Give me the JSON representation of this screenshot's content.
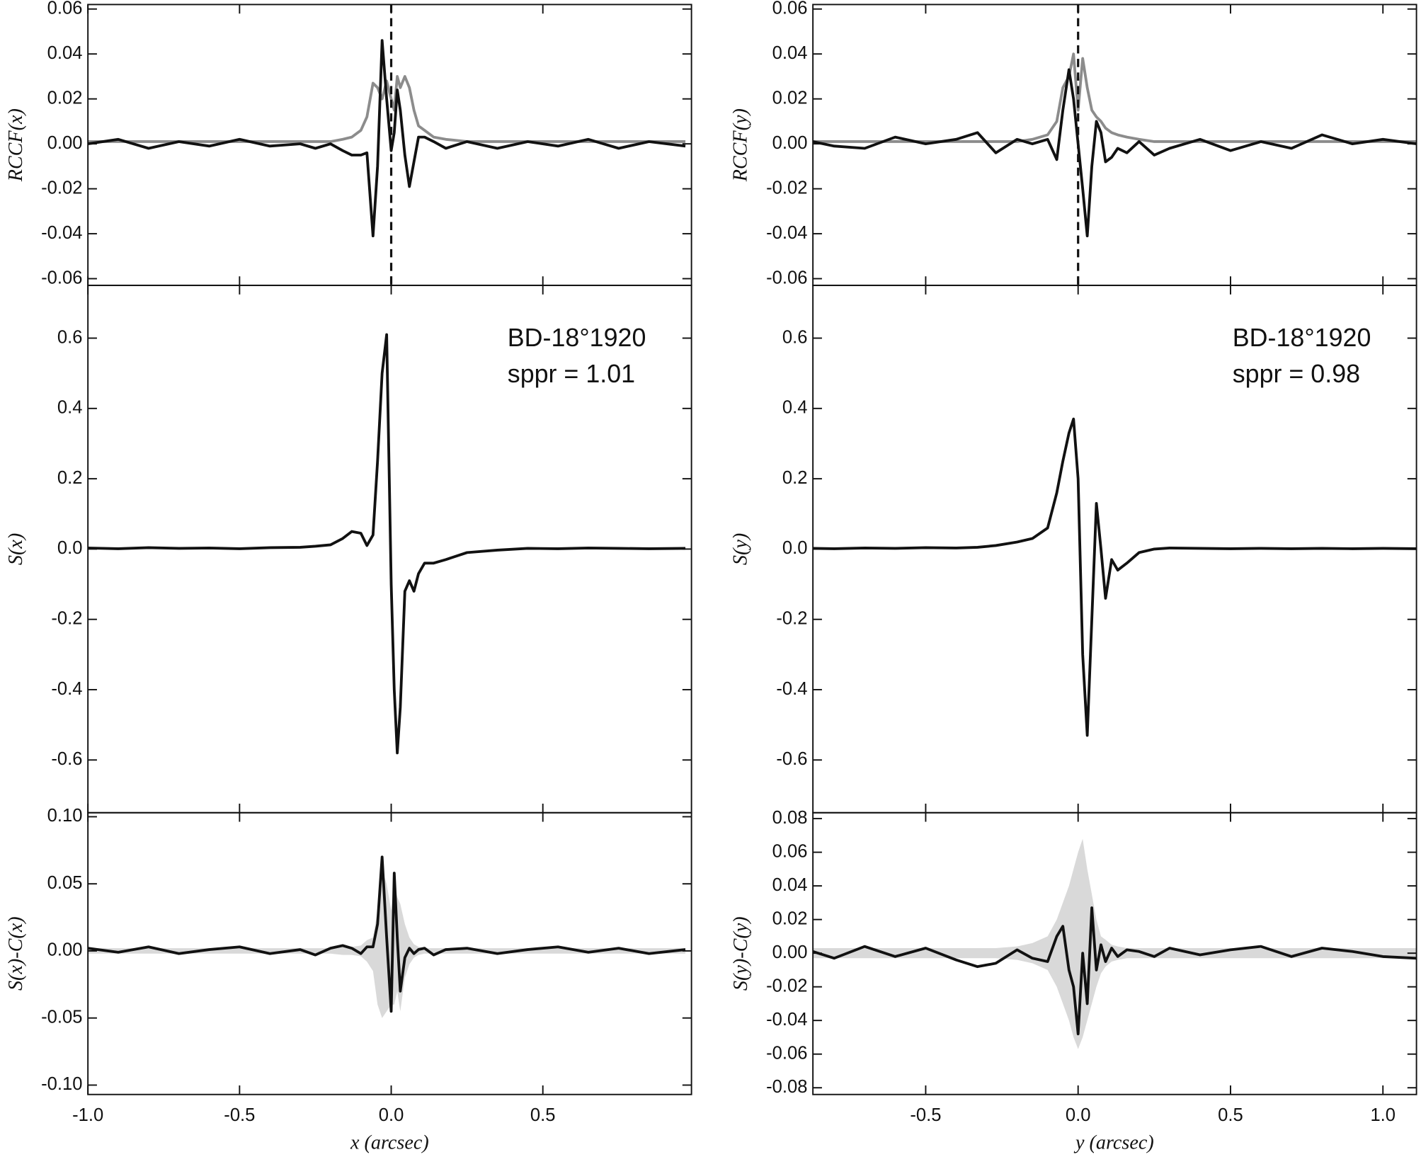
{
  "chart_data": [
    {
      "type": "line",
      "ylabel": "RCCF(x)",
      "vline": 0,
      "x": [
        -1.0,
        -0.9,
        -0.8,
        -0.7,
        -0.6,
        -0.5,
        -0.4,
        -0.3,
        -0.25,
        -0.2,
        -0.16,
        -0.13,
        -0.1,
        -0.08,
        -0.06,
        -0.045,
        -0.03,
        -0.015,
        0,
        0.01,
        0.02,
        0.03,
        0.045,
        0.06,
        0.075,
        0.09,
        0.11,
        0.14,
        0.18,
        0.25,
        0.35,
        0.45,
        0.55,
        0.65,
        0.75,
        0.85,
        0.97
      ],
      "xlim": [
        -1.0,
        0.99
      ],
      "xticks": [
        -1,
        -0.5,
        0,
        0.5
      ],
      "ylim": [
        -0.063,
        0.062
      ],
      "yticks": [
        0.06,
        0.04,
        0.02,
        {
          "value": 0,
          "label": "0.00"
        },
        -0.02,
        -0.04,
        -0.06
      ],
      "series": [
        {
          "color": "#8c8c8c",
          "values": [
            0.001,
            0.001,
            0.001,
            0.001,
            0.001,
            0.001,
            0.001,
            0.001,
            0.001,
            0.001,
            0.002,
            0.003,
            0.006,
            0.012,
            0.027,
            0.025,
            0.02,
            0.028,
            0.02,
            0.015,
            0.03,
            0.025,
            0.03,
            0.025,
            0.015,
            0.008,
            0.006,
            0.003,
            0.002,
            0.001,
            0.001,
            0.001,
            0.001,
            0.001,
            0.001,
            0.001,
            0.001
          ]
        },
        {
          "color": "#111111",
          "values": [
            0,
            0.002,
            -0.002,
            0.001,
            -0.001,
            0.002,
            -0.001,
            0,
            -0.002,
            0,
            -0.003,
            -0.005,
            -0.005,
            -0.004,
            -0.041,
            -0.01,
            0.046,
            0.02,
            -0.003,
            0.005,
            0.024,
            0.015,
            -0.005,
            -0.019,
            -0.008,
            0.003,
            0.003,
            0.001,
            -0.002,
            0.001,
            -0.002,
            0.001,
            -0.001,
            0.002,
            -0.002,
            0.001,
            -0.001
          ]
        }
      ]
    },
    {
      "type": "line",
      "ylabel": "S(x)",
      "annotations": [
        "BD-18°1920",
        "sppr = 1.01"
      ],
      "x": [
        -1.0,
        -0.9,
        -0.8,
        -0.7,
        -0.6,
        -0.5,
        -0.4,
        -0.3,
        -0.25,
        -0.2,
        -0.16,
        -0.13,
        -0.1,
        -0.08,
        -0.06,
        -0.045,
        -0.03,
        -0.015,
        0,
        0.01,
        0.02,
        0.03,
        0.045,
        0.06,
        0.075,
        0.09,
        0.11,
        0.14,
        0.18,
        0.25,
        0.35,
        0.45,
        0.55,
        0.65,
        0.75,
        0.85,
        0.97
      ],
      "xlim": [
        -1.0,
        0.99
      ],
      "xticks": [
        -1,
        -0.5,
        0,
        0.5
      ],
      "ylim": [
        -0.75,
        0.75
      ],
      "yticks": [
        0.6,
        0.4,
        0.2,
        {
          "value": 0,
          "label": "0.0"
        },
        -0.2,
        -0.4,
        -0.6
      ],
      "series": [
        {
          "color": "#111111",
          "values": [
            0.003,
            0.001,
            0.004,
            0.002,
            0.003,
            0.001,
            0.004,
            0.005,
            0.008,
            0.012,
            0.03,
            0.05,
            0.045,
            0.01,
            0.04,
            0.25,
            0.5,
            0.61,
            -0.1,
            -0.4,
            -0.58,
            -0.45,
            -0.12,
            -0.09,
            -0.12,
            -0.07,
            -0.04,
            -0.04,
            -0.03,
            -0.01,
            -0.003,
            0.002,
            0.001,
            0.003,
            0.002,
            0.001,
            0.002
          ]
        }
      ]
    },
    {
      "type": "line",
      "ylabel": "S(x)-C(x)",
      "xlabel": "x (arcsec)",
      "x": [
        -1.0,
        -0.9,
        -0.8,
        -0.7,
        -0.6,
        -0.5,
        -0.4,
        -0.3,
        -0.25,
        -0.2,
        -0.16,
        -0.13,
        -0.1,
        -0.08,
        -0.06,
        -0.045,
        -0.03,
        -0.015,
        0,
        0.01,
        0.02,
        0.03,
        0.045,
        0.06,
        0.075,
        0.09,
        0.11,
        0.14,
        0.18,
        0.25,
        0.35,
        0.45,
        0.55,
        0.65,
        0.75,
        0.85,
        0.97
      ],
      "xlim": [
        -1.0,
        0.99
      ],
      "xticks": [
        {
          "value": -1,
          "label": "-1.0"
        },
        -0.5,
        {
          "value": 0,
          "label": "0.0"
        },
        0.5
      ],
      "ylim": [
        -0.107,
        0.103
      ],
      "yticks": [
        {
          "value": 0.1,
          "label": "0.10"
        },
        0.05,
        {
          "value": 0,
          "label": "0.00"
        },
        -0.05,
        {
          "value": -0.1,
          "label": "-0.10"
        }
      ],
      "series": [
        {
          "type": "band",
          "color": "#d9d9d9",
          "values": [
            0.002,
            0.002,
            0.002,
            0.002,
            0.002,
            0.002,
            0.002,
            0.002,
            0.002,
            0.002,
            0.003,
            0.003,
            0.004,
            0.008,
            0.01,
            0.03,
            0.06,
            0.05,
            0.03,
            0.05,
            0.04,
            0.035,
            0.02,
            0.01,
            0.005,
            0.003,
            0.002,
            0.002,
            0.002,
            0.002,
            0.002,
            0.002,
            0.002,
            0.002,
            0.002,
            0.002,
            0.002
          ],
          "lower": [
            -0.002,
            -0.002,
            -0.002,
            -0.002,
            -0.002,
            -0.002,
            -0.002,
            -0.002,
            -0.002,
            -0.002,
            -0.003,
            -0.003,
            -0.004,
            -0.008,
            -0.015,
            -0.04,
            -0.05,
            -0.045,
            -0.04,
            -0.04,
            -0.03,
            -0.045,
            -0.02,
            -0.01,
            -0.005,
            -0.003,
            -0.002,
            -0.002,
            -0.002,
            -0.002,
            -0.002,
            -0.002,
            -0.002,
            -0.002,
            -0.002,
            -0.002,
            -0.002
          ]
        },
        {
          "color": "#111111",
          "values": [
            0.002,
            -0.001,
            0.003,
            -0.002,
            0.001,
            0.003,
            -0.002,
            0.001,
            -0.003,
            0.002,
            0.004,
            0.002,
            -0.002,
            0.003,
            0.003,
            0.02,
            0.07,
            0.01,
            -0.045,
            0.058,
            0.01,
            -0.03,
            -0.005,
            0.002,
            -0.002,
            0.001,
            0.002,
            -0.003,
            0.001,
            0.002,
            -0.002,
            0.001,
            0.003,
            -0.001,
            0.002,
            -0.002,
            0.001
          ]
        }
      ]
    },
    {
      "type": "line",
      "ylabel": "RCCF(y)",
      "vline": 0,
      "x": [
        -0.87,
        -0.8,
        -0.7,
        -0.6,
        -0.5,
        -0.4,
        -0.33,
        -0.27,
        -0.2,
        -0.15,
        -0.1,
        -0.07,
        -0.05,
        -0.03,
        -0.015,
        0,
        0.015,
        0.03,
        0.045,
        0.06,
        0.075,
        0.09,
        0.11,
        0.13,
        0.16,
        0.2,
        0.25,
        0.3,
        0.4,
        0.5,
        0.6,
        0.7,
        0.8,
        0.9,
        1.0,
        1.11
      ],
      "xlim": [
        -0.87,
        1.11
      ],
      "xticks": [
        -0.5,
        0,
        0.5,
        1
      ],
      "ylim": [
        -0.063,
        0.062
      ],
      "yticks": [
        0.06,
        0.04,
        0.02,
        {
          "value": 0,
          "label": "0.00"
        },
        -0.02,
        -0.04,
        -0.06
      ],
      "series": [
        {
          "color": "#8c8c8c",
          "values": [
            0.001,
            0.001,
            0.001,
            0.001,
            0.001,
            0.001,
            0.001,
            0.001,
            0.001,
            0.002,
            0.004,
            0.01,
            0.025,
            0.03,
            0.04,
            0.015,
            0.038,
            0.025,
            0.015,
            0.012,
            0.01,
            0.007,
            0.005,
            0.004,
            0.003,
            0.002,
            0.001,
            0.001,
            0.001,
            0.001,
            0.001,
            0.001,
            0.001,
            0.001,
            0.001,
            0.001
          ]
        },
        {
          "color": "#111111",
          "values": [
            0.001,
            -0.001,
            -0.002,
            0.003,
            0,
            0.002,
            0.005,
            -0.004,
            0.002,
            0,
            0.002,
            -0.007,
            0.015,
            0.033,
            0.02,
            0,
            -0.02,
            -0.041,
            -0.01,
            0.01,
            0.005,
            -0.008,
            -0.006,
            -0.002,
            -0.004,
            0.001,
            -0.005,
            -0.002,
            0.002,
            -0.003,
            0.001,
            -0.002,
            0.004,
            0,
            0.002,
            0
          ]
        }
      ]
    },
    {
      "type": "line",
      "ylabel": "S(y)",
      "annotations": [
        "BD-18°1920",
        "sppr = 0.98"
      ],
      "x": [
        -0.87,
        -0.8,
        -0.7,
        -0.6,
        -0.5,
        -0.4,
        -0.33,
        -0.27,
        -0.2,
        -0.15,
        -0.1,
        -0.07,
        -0.05,
        -0.03,
        -0.015,
        0,
        0.015,
        0.03,
        0.045,
        0.06,
        0.075,
        0.09,
        0.11,
        0.13,
        0.16,
        0.2,
        0.25,
        0.3,
        0.4,
        0.5,
        0.6,
        0.7,
        0.8,
        0.9,
        1.0,
        1.11
      ],
      "xlim": [
        -0.87,
        1.11
      ],
      "xticks": [
        -0.5,
        0,
        0.5,
        1
      ],
      "ylim": [
        -0.75,
        0.75
      ],
      "yticks": [
        0.6,
        0.4,
        0.2,
        {
          "value": 0,
          "label": "0.0"
        },
        -0.2,
        -0.4,
        -0.6
      ],
      "series": [
        {
          "color": "#111111",
          "values": [
            0.002,
            0.001,
            0.003,
            0.002,
            0.004,
            0.003,
            0.005,
            0.01,
            0.02,
            0.03,
            0.06,
            0.16,
            0.25,
            0.33,
            0.37,
            0.2,
            -0.3,
            -0.53,
            -0.2,
            0.13,
            0,
            -0.14,
            -0.03,
            -0.06,
            -0.04,
            -0.01,
            0,
            0.003,
            0.002,
            0.001,
            0.002,
            0.001,
            0.002,
            0.001,
            0.002,
            0.001
          ]
        }
      ]
    },
    {
      "type": "line",
      "ylabel": "S(y)-C(y)",
      "xlabel": "y (arcsec)",
      "x": [
        -0.87,
        -0.8,
        -0.7,
        -0.6,
        -0.5,
        -0.4,
        -0.33,
        -0.27,
        -0.2,
        -0.15,
        -0.1,
        -0.07,
        -0.05,
        -0.03,
        -0.015,
        0,
        0.015,
        0.03,
        0.045,
        0.06,
        0.075,
        0.09,
        0.11,
        0.13,
        0.16,
        0.2,
        0.25,
        0.3,
        0.4,
        0.5,
        0.6,
        0.7,
        0.8,
        0.9,
        1.0,
        1.11
      ],
      "xlim": [
        -0.87,
        1.11
      ],
      "xticks": [
        -0.5,
        {
          "value": 0,
          "label": "0.0"
        },
        0.5,
        {
          "value": 1,
          "label": "1.0"
        }
      ],
      "ylim": [
        -0.084,
        0.0835
      ],
      "yticks": [
        0.08,
        0.06,
        0.04,
        0.02,
        {
          "value": 0,
          "label": "0.00"
        },
        -0.02,
        -0.04,
        -0.06,
        -0.08
      ],
      "series": [
        {
          "type": "band",
          "color": "#d9d9d9",
          "values": [
            0.003,
            0.003,
            0.003,
            0.003,
            0.003,
            0.003,
            0.003,
            0.003,
            0.004,
            0.006,
            0.01,
            0.02,
            0.03,
            0.04,
            0.05,
            0.06,
            0.068,
            0.05,
            0.035,
            0.02,
            0.01,
            0.008,
            0.005,
            0.004,
            0.003,
            0.003,
            0.003,
            0.003,
            0.003,
            0.003,
            0.003,
            0.003,
            0.003,
            0.003,
            0.003,
            0.003
          ],
          "lower": [
            -0.003,
            -0.003,
            -0.003,
            -0.003,
            -0.003,
            -0.003,
            -0.003,
            -0.003,
            -0.004,
            -0.006,
            -0.01,
            -0.02,
            -0.03,
            -0.04,
            -0.05,
            -0.057,
            -0.05,
            -0.04,
            -0.03,
            -0.02,
            -0.012,
            -0.008,
            -0.005,
            -0.004,
            -0.003,
            -0.003,
            -0.003,
            -0.003,
            -0.003,
            -0.003,
            -0.003,
            -0.003,
            -0.003,
            -0.003,
            -0.003,
            -0.003
          ]
        },
        {
          "color": "#111111",
          "values": [
            0.001,
            -0.003,
            0.004,
            -0.002,
            0.003,
            -0.004,
            -0.008,
            -0.006,
            0.002,
            -0.003,
            -0.005,
            0.01,
            0.016,
            -0.01,
            -0.02,
            -0.048,
            0,
            -0.03,
            0.027,
            -0.01,
            0.005,
            -0.005,
            0.003,
            -0.002,
            0.002,
            0.001,
            -0.002,
            0.003,
            -0.001,
            0.002,
            0.004,
            -0.002,
            0.003,
            0.001,
            -0.002,
            -0.003
          ]
        }
      ]
    }
  ]
}
